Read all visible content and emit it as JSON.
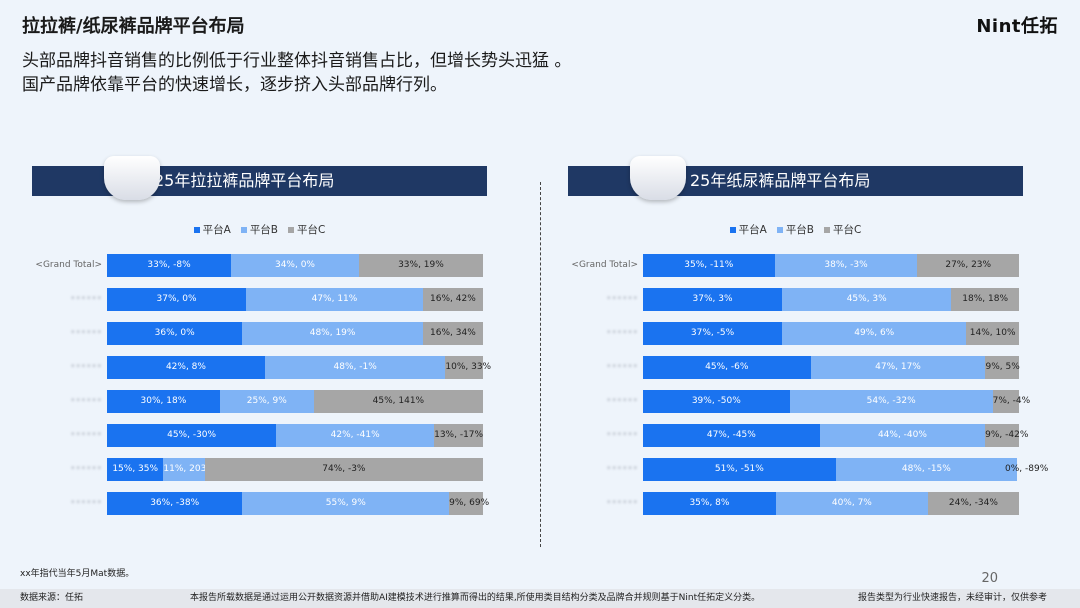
{
  "header": {
    "title": "拉拉裤/纸尿裤品牌平台布局",
    "logo": "Nint任拓",
    "subtitle1": "头部品牌抖音销售的比例低于行业整体抖音销售占比，但增长势头迅猛 。",
    "subtitle2": "国产品牌依靠平台的快速增长，逐步挤入头部品牌行列。"
  },
  "colors": {
    "A": "#1a73f0",
    "B": "#7fb3f5",
    "C": "#a6a6a6",
    "banner": "#1f3864"
  },
  "legend": [
    "平台A",
    "平台B",
    "平台C"
  ],
  "chart_data": [
    {
      "type": "bar",
      "stacked": true,
      "orientation": "horizontal",
      "title": "25年拉拉裤品牌平台布局",
      "categories": [
        "<Grand Total>",
        "",
        "",
        "",
        "",
        "",
        "",
        ""
      ],
      "series": [
        {
          "name": "平台A",
          "values": [
            33,
            37,
            36,
            42,
            30,
            45,
            15,
            36
          ],
          "labels": [
            "33%, -8%",
            "37%, 0%",
            "36%, 0%",
            "42%, 8%",
            "30%, 18%",
            "45%, -30%",
            "15%, 35%",
            "36%, -38%"
          ]
        },
        {
          "name": "平台B",
          "values": [
            34,
            47,
            48,
            48,
            25,
            42,
            11,
            55
          ],
          "labels": [
            "34%, 0%",
            "47%, 11%",
            "48%, 19%",
            "48%, -1%",
            "25%, 9%",
            "42%, -41%",
            "11%, 203%",
            "55%, 9%"
          ]
        },
        {
          "name": "平台C",
          "values": [
            33,
            16,
            16,
            10,
            45,
            13,
            74,
            9
          ],
          "labels": [
            "33%, 19%",
            "16%, 42%",
            "16%, 34%",
            "10%, 33%",
            "45%, 141%",
            "13%, -17%",
            "74%, -3%",
            "9%, 69%"
          ]
        }
      ]
    },
    {
      "type": "bar",
      "stacked": true,
      "orientation": "horizontal",
      "title": "25年纸尿裤品牌平台布局",
      "categories": [
        "<Grand Total>",
        "",
        "",
        "",
        "",
        "",
        "",
        ""
      ],
      "series": [
        {
          "name": "平台A",
          "values": [
            35,
            37,
            37,
            45,
            39,
            47,
            51,
            35
          ],
          "labels": [
            "35%, -11%",
            "37%, 3%",
            "37%, -5%",
            "45%, -6%",
            "39%, -50%",
            "47%, -45%",
            "51%, -51%",
            "35%, 8%"
          ]
        },
        {
          "name": "平台B",
          "values": [
            38,
            45,
            49,
            47,
            54,
            44,
            48,
            40
          ],
          "labels": [
            "38%, -3%",
            "45%, 3%",
            "49%, 6%",
            "47%, 17%",
            "54%, -32%",
            "44%, -40%",
            "48%, -15%",
            "40%, 7%"
          ]
        },
        {
          "name": "平台C",
          "values": [
            27,
            18,
            14,
            9,
            7,
            9,
            0,
            24
          ],
          "labels": [
            "27%, 23%",
            "18%, 18%",
            "14%, 10%",
            "9%, 5%",
            "7%, -4%",
            "9%, -42%",
            "0%, -89%",
            "24%, -34%"
          ]
        }
      ]
    }
  ],
  "note": "xx年指代当年5月Mat数据。",
  "page_number": "20",
  "footer": {
    "source": "数据来源：任拓",
    "disclaimer": "本报告所载数据是通过运用公开数据资源并借助AI建模技术进行推算而得出的结果,所使用类目结构分类及品牌合并规则基于Nint任拓定义分类。",
    "report_type": "报告类型为行业快速报告，未经审计，仅供参考"
  }
}
